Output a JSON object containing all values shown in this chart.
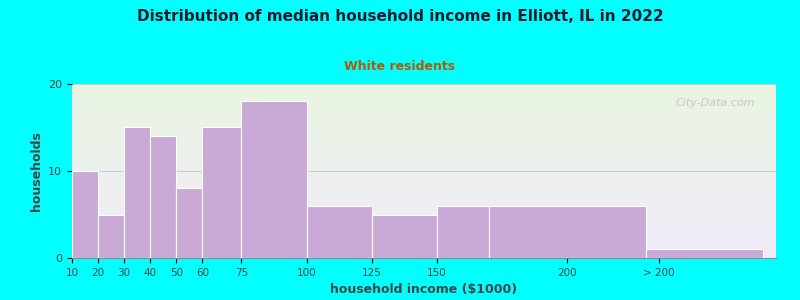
{
  "title": "Distribution of median household income in Elliott, IL in 2022",
  "subtitle": "White residents",
  "xlabel": "household income ($1000)",
  "ylabel": "households",
  "background_outer": "#00FFFF",
  "background_inner_gradient_top": "#eaf5e2",
  "background_inner_gradient_bottom": "#f0ecfa",
  "bar_color": "#c9aad6",
  "bar_edge_color": "#ffffff",
  "title_color": "#1a1a2e",
  "subtitle_color": "#b35900",
  "axis_label_color": "#444444",
  "tick_color": "#444444",
  "watermark": "City-Data.com",
  "lefts": [
    10,
    20,
    30,
    40,
    50,
    60,
    75,
    100,
    125,
    150,
    170,
    230
  ],
  "widths": [
    10,
    10,
    10,
    10,
    10,
    15,
    25,
    25,
    25,
    20,
    60,
    45
  ],
  "values": [
    10,
    5,
    15,
    14,
    8,
    15,
    18,
    6,
    5,
    6,
    6,
    1
  ],
  "tick_positions": [
    10,
    20,
    30,
    40,
    50,
    60,
    75,
    100,
    125,
    150,
    200,
    235
  ],
  "tick_labels": [
    "10",
    "20",
    "30",
    "40",
    "50",
    "60",
    "75",
    "100",
    "125",
    "150",
    "200",
    "> 200"
  ],
  "xlim": [
    10,
    280
  ],
  "ylim": [
    0,
    20
  ],
  "yticks": [
    0,
    10,
    20
  ]
}
